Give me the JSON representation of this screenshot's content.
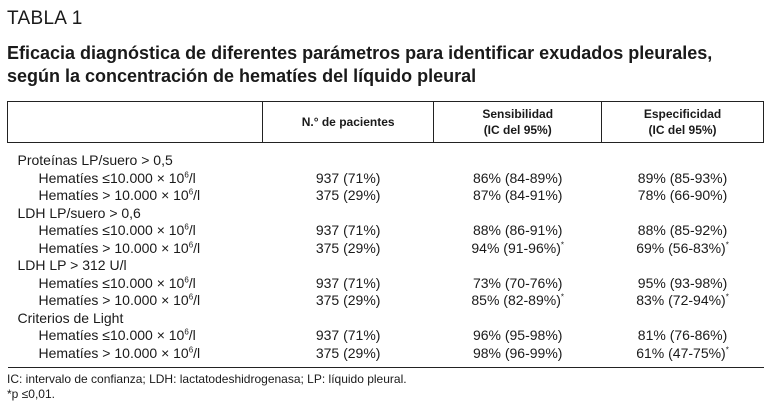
{
  "table_label": "TABLA 1",
  "caption": "Eficacia diagnóstica de diferentes parámetros para identificar exudados pleurales, según la concentración de hematíes del líquido pleural",
  "headers": {
    "col0": "",
    "col1": "N.° de pacientes",
    "col2_line1": "Sensibilidad",
    "col2_line2": "(IC del 95%)",
    "col3_line1": "Especificidad",
    "col3_line2": "(IC del 95%)"
  },
  "rows": [
    {
      "type": "param",
      "label": "Proteínas LP/suero > 0,5"
    },
    {
      "type": "sub",
      "label_prefix": "Hematíes ≤10.000 × 10",
      "label_exp": "6",
      "label_suffix": "/l",
      "patients": "937 (71%)",
      "sens": "86% (84-89%)",
      "sens_mark": "",
      "spec": "89% (85-93%)",
      "spec_mark": ""
    },
    {
      "type": "sub",
      "label_prefix": "Hematíes > 10.000 × 10",
      "label_exp": "6",
      "label_suffix": "/l",
      "patients": "375 (29%)",
      "sens": "87% (84-91%)",
      "sens_mark": "",
      "spec": "78% (66-90%)",
      "spec_mark": ""
    },
    {
      "type": "param",
      "label": "LDH LP/suero > 0,6"
    },
    {
      "type": "sub",
      "label_prefix": "Hematíes ≤10.000 × 10",
      "label_exp": "6",
      "label_suffix": "/l",
      "patients": "937 (71%)",
      "sens": "88% (86-91%)",
      "sens_mark": "",
      "spec": "88% (85-92%)",
      "spec_mark": ""
    },
    {
      "type": "sub",
      "label_prefix": "Hematíes > 10.000 × 10",
      "label_exp": "6",
      "label_suffix": "/l",
      "patients": "375 (29%)",
      "sens": "94% (91-96%)",
      "sens_mark": "*",
      "spec": "69% (56-83%)",
      "spec_mark": "*"
    },
    {
      "type": "param",
      "label": "LDH LP > 312 U/l"
    },
    {
      "type": "sub",
      "label_prefix": "Hematíes ≤10.000 × 10",
      "label_exp": "6",
      "label_suffix": "/l",
      "patients": "937 (71%)",
      "sens": "73% (70-76%)",
      "sens_mark": "",
      "spec": "95% (93-98%)",
      "spec_mark": ""
    },
    {
      "type": "sub",
      "label_prefix": "Hematíes > 10.000 × 10",
      "label_exp": "6",
      "label_suffix": "/l",
      "patients": "375 (29%)",
      "sens": "85% (82-89%)",
      "sens_mark": "*",
      "spec": "83% (72-94%)",
      "spec_mark": "*"
    },
    {
      "type": "param",
      "label": "Criterios de Light"
    },
    {
      "type": "sub",
      "label_prefix": "Hematíes ≤10.000 × 10",
      "label_exp": "6",
      "label_suffix": "/l",
      "patients": "937 (71%)",
      "sens": "96% (95-98%)",
      "sens_mark": "",
      "spec": "81% (76-86%)",
      "spec_mark": ""
    },
    {
      "type": "sub",
      "label_prefix": "Hematíes > 10.000 × 10",
      "label_exp": "6",
      "label_suffix": "/l",
      "patients": "375 (29%)",
      "sens": "98% (96-99%)",
      "sens_mark": "",
      "spec": "61% (47-75%)",
      "spec_mark": "*"
    }
  ],
  "footnotes": [
    "IC: intervalo de confianza; LDH: lactatodeshidrogenasa; LP: líquido pleural.",
    "*p ≤0,01."
  ]
}
